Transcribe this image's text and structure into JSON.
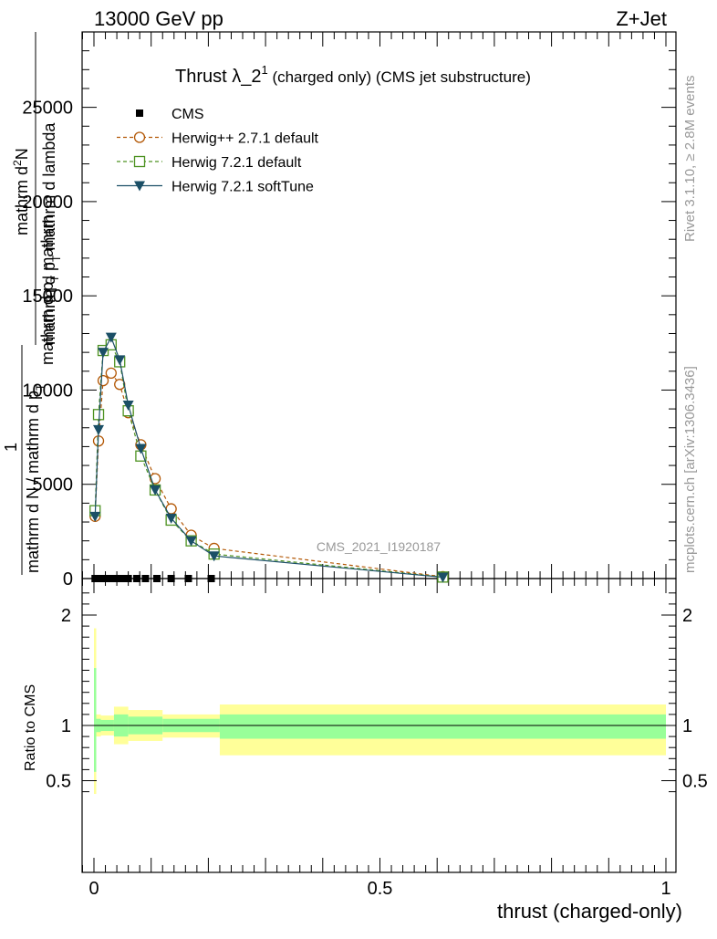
{
  "header": {
    "left": "13000 GeV pp",
    "right": "Z+Jet"
  },
  "plot_title": {
    "main": "Thrust λ_2",
    "sup": "1",
    "rest": " (charged only) (CMS jet substructure)"
  },
  "side_labels": {
    "rivet": "Rivet 3.1.10, ≥ 2.8M events",
    "mcplots": "mcplots.cern.ch [arXiv:1306.3436]"
  },
  "watermark": "CMS_2021_I1920187",
  "ylabel_main": {
    "numerator_line1": "mathrm d",
    "numerator_line1_sup": "2",
    "numerator_line2": "N",
    "denominator_a": "mathrm d p",
    "denominator_a_sub": "T",
    "denominator_b": " mathrm d lambda",
    "one": "1",
    "lower_num": "mathrm d N / mathrm d p",
    "lower_num_sub": "T",
    "lower_den": "mathrm d p",
    "lower_den_sub": "T",
    "lower_den_b": " mathrm"
  },
  "ylabel_ratio": "Ratio to CMS",
  "xlabel": "thrust (charged-only)",
  "legend": [
    {
      "label": "CMS",
      "color": "#000000",
      "marker": "square-filled",
      "dash": "none"
    },
    {
      "label": "Herwig++ 2.7.1 default",
      "color": "#b35806",
      "marker": "circle-open",
      "dash": "dashed"
    },
    {
      "label": "Herwig 7.2.1 default",
      "color": "#4d9221",
      "marker": "square-open",
      "dash": "dashed"
    },
    {
      "label": "Herwig 7.2.1 softTune",
      "color": "#1b4f66",
      "marker": "triangle-down",
      "dash": "solid"
    }
  ],
  "chart_data": {
    "type": "line",
    "main": {
      "xlim": [
        -0.02,
        1.02
      ],
      "ylim": [
        0,
        29000
      ],
      "yticks": [
        0,
        5000,
        10000,
        15000,
        20000,
        25000
      ],
      "ytick_labels": [
        "0",
        "5000",
        "10000",
        "15000",
        "20000",
        "25000"
      ],
      "series": [
        {
          "name": "CMS",
          "x": [
            0.002,
            0.008,
            0.015,
            0.022,
            0.03,
            0.04,
            0.05,
            0.06,
            0.075,
            0.09,
            0.11,
            0.135,
            0.165,
            0.205
          ],
          "y": [
            0,
            0,
            0,
            0,
            0,
            0,
            0,
            0,
            0,
            0,
            0,
            0,
            0,
            0
          ]
        },
        {
          "name": "Herwig++ 2.7.1 default",
          "x": [
            0.002,
            0.008,
            0.016,
            0.03,
            0.045,
            0.06,
            0.082,
            0.107,
            0.135,
            0.17,
            0.21,
            0.61
          ],
          "y": [
            3300,
            7300,
            10500,
            10900,
            10300,
            8800,
            7100,
            5300,
            3700,
            2300,
            1600,
            100
          ]
        },
        {
          "name": "Herwig 7.2.1 default",
          "x": [
            0.002,
            0.008,
            0.016,
            0.03,
            0.045,
            0.06,
            0.082,
            0.107,
            0.135,
            0.17,
            0.21,
            0.61
          ],
          "y": [
            3600,
            8700,
            12100,
            12400,
            11500,
            8900,
            6500,
            4700,
            3100,
            2000,
            1300,
            80
          ]
        },
        {
          "name": "Herwig 7.2.1 softTune",
          "x": [
            0.002,
            0.008,
            0.016,
            0.03,
            0.045,
            0.06,
            0.082,
            0.107,
            0.135,
            0.17,
            0.21,
            0.61
          ],
          "y": [
            3300,
            7900,
            12000,
            12800,
            11600,
            9200,
            6900,
            4700,
            3200,
            2000,
            1200,
            70
          ]
        }
      ]
    },
    "ratio": {
      "ylim": [
        0.4,
        2.25
      ],
      "yticks": [
        0.5,
        1,
        2
      ],
      "ytick_labels": [
        "0.5",
        "1",
        "2"
      ],
      "reference": 1,
      "bands": [
        {
          "x0": 0.0,
          "x1": 0.004,
          "stat_lo": 0.58,
          "stat_hi": 1.52,
          "tot_lo": 0.38,
          "tot_hi": 1.88
        },
        {
          "x0": 0.004,
          "x1": 0.012,
          "stat_lo": 0.94,
          "stat_hi": 1.06,
          "tot_lo": 0.9,
          "tot_hi": 1.1
        },
        {
          "x0": 0.012,
          "x1": 0.035,
          "stat_lo": 0.95,
          "stat_hi": 1.05,
          "tot_lo": 0.91,
          "tot_hi": 1.09
        },
        {
          "x0": 0.035,
          "x1": 0.06,
          "stat_lo": 0.9,
          "stat_hi": 1.1,
          "tot_lo": 0.83,
          "tot_hi": 1.17
        },
        {
          "x0": 0.06,
          "x1": 0.12,
          "stat_lo": 0.92,
          "stat_hi": 1.08,
          "tot_lo": 0.86,
          "tot_hi": 1.14
        },
        {
          "x0": 0.12,
          "x1": 0.22,
          "stat_lo": 0.94,
          "stat_hi": 1.06,
          "tot_lo": 0.89,
          "tot_hi": 1.1
        },
        {
          "x0": 0.22,
          "x1": 1.0,
          "stat_lo": 0.88,
          "stat_hi": 1.1,
          "tot_lo": 0.73,
          "tot_hi": 1.19
        }
      ]
    },
    "xticks": [
      0,
      0.5,
      1
    ],
    "xtick_labels": [
      "0",
      "0.5",
      "1"
    ],
    "colors": {
      "stat_band": "#99ff99",
      "total_band": "#ffff99"
    }
  }
}
